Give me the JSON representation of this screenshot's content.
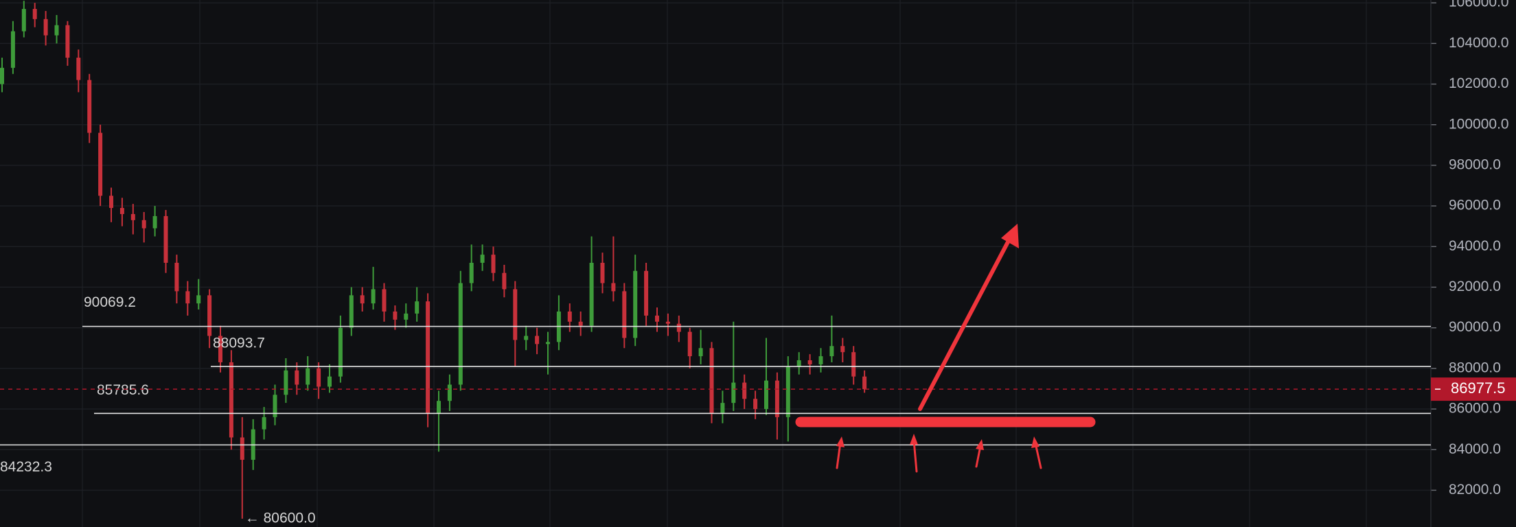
{
  "chart_data": {
    "type": "candlestick",
    "up_color": "#3e9c3a",
    "down_color": "#c8313b",
    "ylim": [
      80190,
      106140
    ],
    "yticks": [
      {
        "value": 82000,
        "label": "82000.0"
      },
      {
        "value": 84000,
        "label": "84000.0"
      },
      {
        "value": 86000,
        "label": "86000.0"
      },
      {
        "value": 88000,
        "label": "88000.0"
      },
      {
        "value": 90000,
        "label": "90000.0"
      },
      {
        "value": 92000,
        "label": "92000.0"
      },
      {
        "value": 94000,
        "label": "94000.0"
      },
      {
        "value": 96000,
        "label": "96000.0"
      },
      {
        "value": 98000,
        "label": "98000.0"
      },
      {
        "value": 100000,
        "label": "100000.0"
      },
      {
        "value": 102000,
        "label": "102000.0"
      },
      {
        "value": 104000,
        "label": "104000.0"
      },
      {
        "value": 106000,
        "label": "106000.0"
      }
    ],
    "grid": true,
    "levels": [
      90069.2,
      88093.7,
      85785.6,
      84232.3
    ],
    "current_price": {
      "value": 86977.5,
      "color": "#b2182b"
    },
    "low_marker": {
      "value": 80600,
      "label": "← 80600.0"
    },
    "candles": [
      [
        102000,
        103300,
        101600,
        102800
      ],
      [
        102800,
        105100,
        102500,
        104600
      ],
      [
        104600,
        106100,
        104300,
        105700
      ],
      [
        105700,
        106000,
        104800,
        105200
      ],
      [
        105200,
        105600,
        103900,
        104400
      ],
      [
        104400,
        105400,
        104000,
        104900
      ],
      [
        104900,
        105100,
        102900,
        103300
      ],
      [
        103300,
        103700,
        101600,
        102200
      ],
      [
        102200,
        102500,
        99100,
        99600
      ],
      [
        99600,
        100000,
        96000,
        96500
      ],
      [
        96500,
        96900,
        95200,
        95900
      ],
      [
        95900,
        96400,
        95000,
        95600
      ],
      [
        95600,
        96100,
        94600,
        95300
      ],
      [
        95300,
        95700,
        94200,
        94900
      ],
      [
        94900,
        96000,
        94500,
        95500
      ],
      [
        95500,
        95800,
        92700,
        93200
      ],
      [
        93200,
        93600,
        91200,
        91800
      ],
      [
        91800,
        92300,
        90600,
        91200
      ],
      [
        91200,
        92400,
        90900,
        91600
      ],
      [
        91600,
        91900,
        89000,
        89600
      ],
      [
        89600,
        90100,
        87800,
        88300
      ],
      [
        88300,
        88900,
        84000,
        84600
      ],
      [
        84600,
        85600,
        80600,
        83500
      ],
      [
        83500,
        85500,
        83000,
        85000
      ],
      [
        85000,
        86100,
        84500,
        85600
      ],
      [
        85600,
        87200,
        85200,
        86700
      ],
      [
        86700,
        88500,
        86300,
        87900
      ],
      [
        87900,
        88300,
        86700,
        87200
      ],
      [
        87200,
        88600,
        86900,
        88000
      ],
      [
        88000,
        88300,
        86500,
        87100
      ],
      [
        87100,
        88200,
        86800,
        87600
      ],
      [
        87600,
        90600,
        87300,
        90000
      ],
      [
        90000,
        92000,
        89600,
        91600
      ],
      [
        91600,
        92000,
        90800,
        91200
      ],
      [
        91200,
        93000,
        90900,
        91900
      ],
      [
        91900,
        92200,
        90300,
        90800
      ],
      [
        90800,
        91100,
        89900,
        90400
      ],
      [
        90400,
        91200,
        90000,
        90700
      ],
      [
        90700,
        92000,
        90300,
        91300
      ],
      [
        91300,
        91700,
        85100,
        85800
      ],
      [
        85800,
        86900,
        83900,
        86400
      ],
      [
        86400,
        87700,
        85900,
        87200
      ],
      [
        87200,
        92800,
        86900,
        92200
      ],
      [
        92200,
        94100,
        91800,
        93200
      ],
      [
        93200,
        94100,
        92800,
        93600
      ],
      [
        93600,
        94000,
        92300,
        92700
      ],
      [
        92700,
        93100,
        91500,
        91900
      ],
      [
        91900,
        92300,
        88100,
        89400
      ],
      [
        89400,
        90100,
        88900,
        89600
      ],
      [
        89600,
        90000,
        88700,
        89200
      ],
      [
        89200,
        89800,
        87700,
        89300
      ],
      [
        89300,
        91600,
        88900,
        90800
      ],
      [
        90800,
        91200,
        89800,
        90300
      ],
      [
        90300,
        90800,
        89600,
        90100
      ],
      [
        90100,
        94500,
        89800,
        93200
      ],
      [
        93200,
        93700,
        91700,
        92200
      ],
      [
        92200,
        94500,
        91300,
        91800
      ],
      [
        91800,
        92200,
        89000,
        89500
      ],
      [
        89500,
        93600,
        89100,
        92800
      ],
      [
        92800,
        93200,
        90100,
        90600
      ],
      [
        90600,
        91000,
        89800,
        90300
      ],
      [
        90300,
        90700,
        89600,
        90200
      ],
      [
        90200,
        90600,
        89300,
        89800
      ],
      [
        89800,
        90000,
        88000,
        88600
      ],
      [
        88600,
        89900,
        88200,
        89000
      ],
      [
        89000,
        89300,
        85300,
        85800
      ],
      [
        85800,
        86900,
        85300,
        86300
      ],
      [
        86300,
        90300,
        85900,
        87300
      ],
      [
        87300,
        87700,
        86000,
        86500
      ],
      [
        86500,
        86900,
        85500,
        86000
      ],
      [
        86000,
        89500,
        85700,
        87400
      ],
      [
        87400,
        87800,
        84500,
        85600
      ],
      [
        85600,
        88600,
        84400,
        88100
      ],
      [
        88100,
        88800,
        87700,
        88400
      ],
      [
        88400,
        88700,
        87700,
        88200
      ],
      [
        88200,
        89000,
        87800,
        88600
      ],
      [
        88600,
        90600,
        88300,
        89100
      ],
      [
        89100,
        89500,
        88300,
        88800
      ],
      [
        88800,
        89100,
        87200,
        87600
      ],
      [
        87600,
        87900,
        86800,
        86977.5
      ]
    ]
  }
}
